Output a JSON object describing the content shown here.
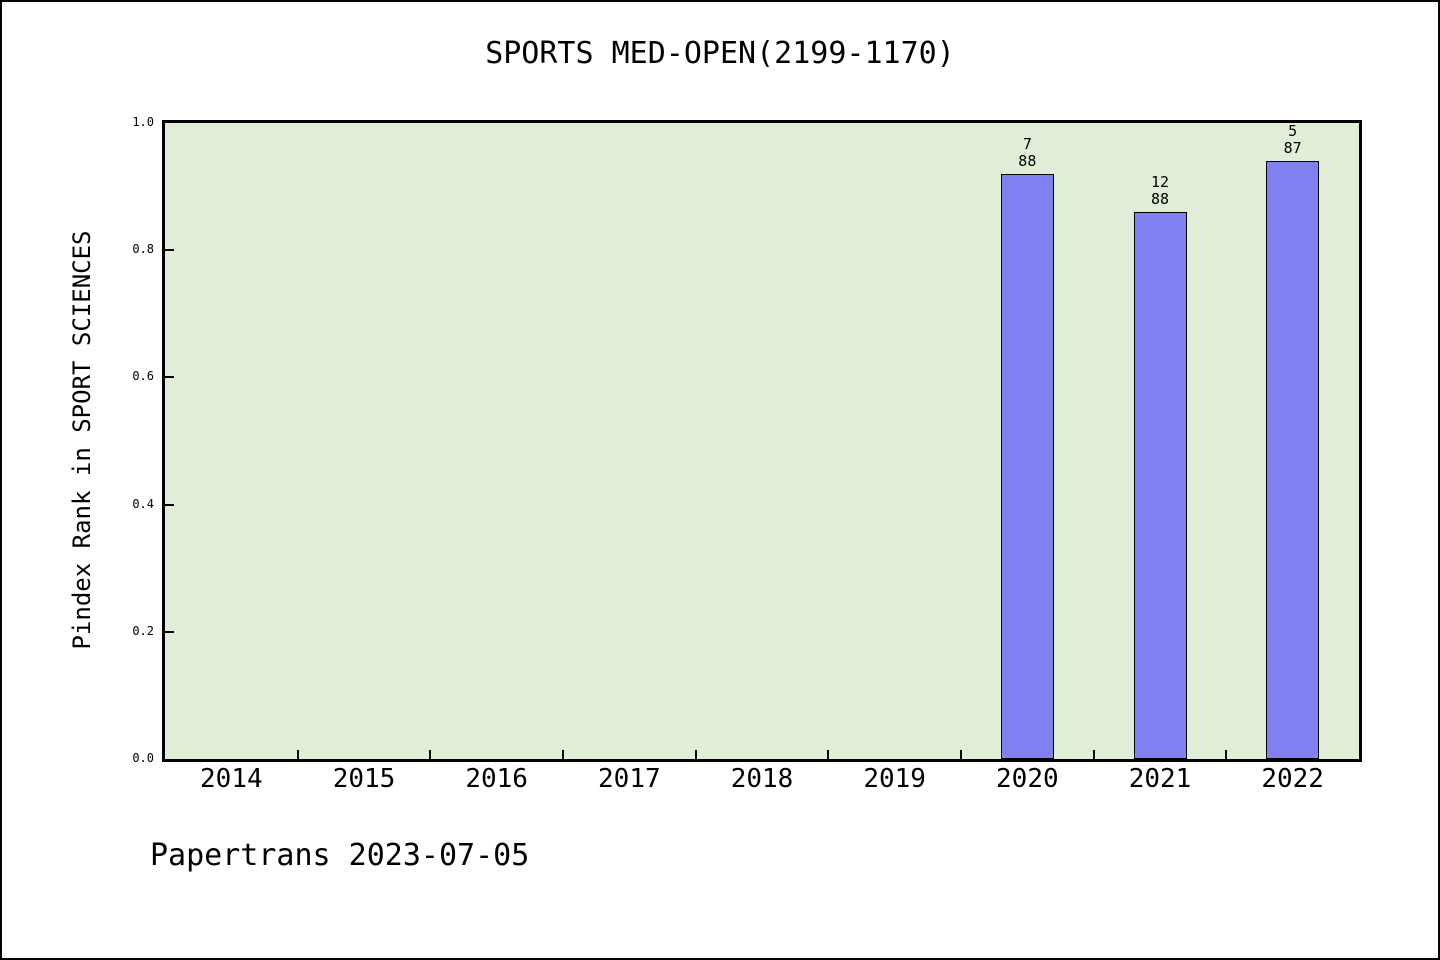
{
  "chart_data": {
    "type": "bar",
    "title": "SPORTS MED-OPEN(2199-1170)",
    "xlabel": "",
    "ylabel": "Pindex Rank in SPORT SCIENCES",
    "annotation": "Papertrans 2023-07-05",
    "categories": [
      "2014",
      "2015",
      "2016",
      "2017",
      "2018",
      "2019",
      "2020",
      "2021",
      "2022"
    ],
    "values": [
      null,
      null,
      null,
      null,
      null,
      null,
      0.92,
      0.86,
      0.94
    ],
    "bar_annotations": [
      {
        "category": "2020",
        "rank": "7",
        "total": "88"
      },
      {
        "category": "2021",
        "rank": "12",
        "total": "88"
      },
      {
        "category": "2022",
        "rank": "5",
        "total": "87"
      }
    ],
    "ylim": [
      0.0,
      1.0
    ],
    "yticks": [
      "0.0",
      "0.2",
      "0.4",
      "0.6",
      "0.8",
      "1.0"
    ],
    "grid": false,
    "legend": "none",
    "bar_width_fraction": 0.4,
    "colors": {
      "bar_fill": "#8080f0",
      "bar_border": "#000000",
      "plot_background": "#e0eed8",
      "figure_background": "#ffffff",
      "text": "#000000"
    }
  }
}
